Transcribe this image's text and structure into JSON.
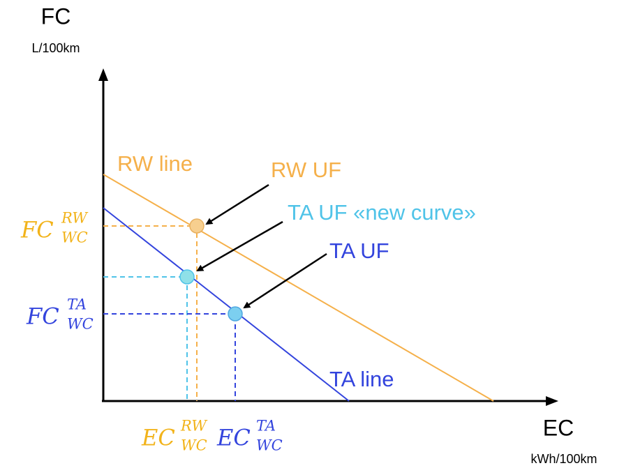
{
  "axes": {
    "y": {
      "label": "FC",
      "unit": "L/100km"
    },
    "x": {
      "label": "EC",
      "unit": "kWh/100km"
    }
  },
  "lines": [
    {
      "label": "RW line"
    },
    {
      "label": "TA line"
    }
  ],
  "points": [
    {
      "label": "RW UF"
    },
    {
      "label": "TA UF «new curve»"
    },
    {
      "label": "TA UF"
    }
  ],
  "math_labels": [
    {
      "base": "FC",
      "sup": "RW",
      "sub": "WC"
    },
    {
      "base": "FC",
      "sup": "TA",
      "sub": "WC"
    },
    {
      "base": "EC",
      "sup": "RW",
      "sub": "WC"
    },
    {
      "base": "EC",
      "sup": "TA",
      "sub": "WC"
    }
  ]
}
